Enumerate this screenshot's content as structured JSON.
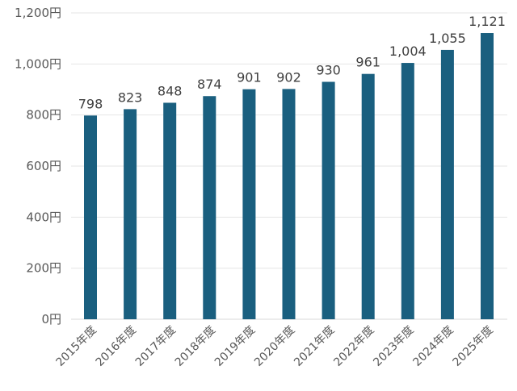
{
  "chart_data": {
    "type": "bar",
    "title": "",
    "xlabel": "",
    "ylabel": "",
    "categories": [
      "2015年度",
      "2016年度",
      "2017年度",
      "2018年度",
      "2019年度",
      "2020年度",
      "2021年度",
      "2022年度",
      "2023年度",
      "2024年度",
      "2025年度"
    ],
    "values": [
      798,
      823,
      848,
      874,
      901,
      902,
      930,
      961,
      1004,
      1055,
      1121
    ],
    "value_labels": [
      "798",
      "823",
      "848",
      "874",
      "901",
      "902",
      "930",
      "961",
      "1,004",
      "1,055",
      "1,121"
    ],
    "ylim": [
      0,
      1200
    ],
    "yticks": [
      0,
      200,
      400,
      600,
      800,
      1000,
      1200
    ],
    "ytick_labels": [
      "0円",
      "200円",
      "400円",
      "600円",
      "800円",
      "1,000円",
      "1,200円"
    ],
    "grid": true,
    "legend": null,
    "bar_color": "#1a5f7f",
    "grid_color": "#e6e6e6"
  }
}
